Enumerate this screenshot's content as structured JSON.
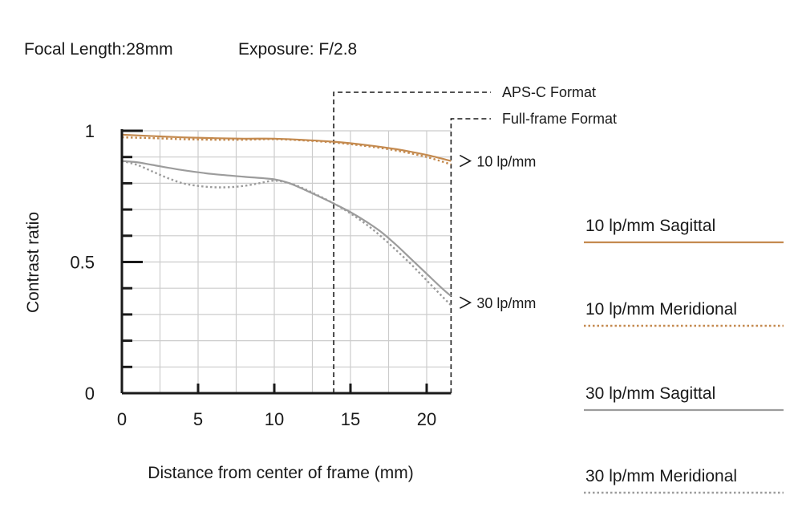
{
  "header": {
    "focal_length": "Focal Length:28mm",
    "exposure": "Exposure: F/2.8"
  },
  "colors": {
    "sagittal_10": "#c48a4f",
    "meridional_10": "#c48a4f",
    "sagittal_30": "#9c9c9c",
    "meridional_30": "#9c9c9c",
    "grid": "#cccccc",
    "axis": "#1a1a1a"
  },
  "chart_data": {
    "type": "line",
    "xlabel": "Distance from center of frame (mm)",
    "ylabel": "Contrast ratio",
    "xlim": [
      0,
      21.6
    ],
    "ylim": [
      0,
      1
    ],
    "x_ticks": [
      0,
      5,
      10,
      15,
      20
    ],
    "x_tick_labels": [
      "0",
      "5",
      "10",
      "15",
      "20"
    ],
    "y_ticks": [
      0,
      0.5,
      1
    ],
    "y_tick_labels": [
      "0",
      "0.5",
      "1"
    ],
    "grid": true,
    "line_labels": [
      "10 lp/mm",
      "30 lp/mm"
    ],
    "formats": [
      {
        "label": "APS-C Format",
        "x": 13.9
      },
      {
        "label": "Full-frame Format",
        "x": 21.6
      }
    ],
    "series": [
      {
        "name": "10 lp/mm Sagittal",
        "style": "solid",
        "color": "#c48a4f",
        "x": [
          0,
          2,
          4,
          6,
          8,
          10,
          12,
          14,
          16,
          18,
          20,
          21.6
        ],
        "y": [
          0.985,
          0.98,
          0.975,
          0.972,
          0.97,
          0.97,
          0.965,
          0.958,
          0.946,
          0.93,
          0.908,
          0.885
        ]
      },
      {
        "name": "10 lp/mm Meridional",
        "style": "dotted",
        "color": "#c48a4f",
        "x": [
          0,
          2,
          4,
          6,
          8,
          10,
          12,
          14,
          16,
          18,
          20,
          21.6
        ],
        "y": [
          0.975,
          0.972,
          0.968,
          0.966,
          0.966,
          0.968,
          0.963,
          0.955,
          0.942,
          0.925,
          0.9,
          0.872
        ]
      },
      {
        "name": "30 lp/mm Sagittal",
        "style": "solid",
        "color": "#9c9c9c",
        "x": [
          0,
          1,
          2,
          4,
          6,
          8,
          10,
          11,
          12,
          13,
          14,
          15,
          16,
          17,
          18,
          19,
          20,
          21,
          21.6
        ],
        "y": [
          0.885,
          0.88,
          0.87,
          0.85,
          0.835,
          0.825,
          0.815,
          0.8,
          0.775,
          0.748,
          0.72,
          0.69,
          0.655,
          0.615,
          0.565,
          0.51,
          0.455,
          0.4,
          0.37
        ]
      },
      {
        "name": "30 lp/mm Meridional",
        "style": "dotted",
        "color": "#9c9c9c",
        "x": [
          0,
          1,
          2,
          3,
          4,
          5,
          6,
          7,
          8,
          9,
          10,
          11,
          12,
          13,
          14,
          15,
          16,
          17,
          18,
          19,
          20,
          21,
          21.6
        ],
        "y": [
          0.885,
          0.87,
          0.845,
          0.82,
          0.8,
          0.79,
          0.785,
          0.785,
          0.79,
          0.8,
          0.81,
          0.8,
          0.778,
          0.75,
          0.72,
          0.685,
          0.645,
          0.598,
          0.545,
          0.49,
          0.43,
          0.37,
          0.335
        ]
      }
    ]
  }
}
